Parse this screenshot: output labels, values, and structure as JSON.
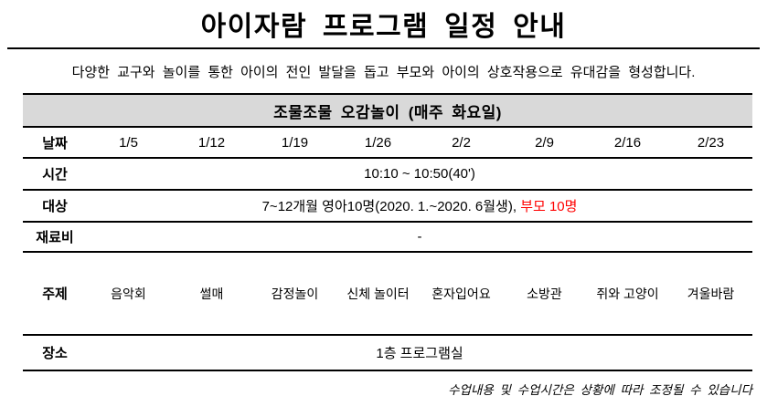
{
  "page": {
    "title": "아이자람  프로그램  일정  안내",
    "subtitle": "다양한 교구와 놀이를 통한 아이의 전인 발달을 돕고 부모와 아이의 상호작용으로 유대감을 형성합니다.",
    "footnote": "수업내용 및 수업시간은 상황에 따라 조정될 수 있습니다"
  },
  "table": {
    "header": "조물조물 오감놀이 (매주 화요일)",
    "rows": {
      "date": {
        "label": "날짜",
        "values": [
          "1/5",
          "1/12",
          "1/19",
          "1/26",
          "2/2",
          "2/9",
          "2/16",
          "2/23"
        ]
      },
      "time": {
        "label": "시간",
        "value": "10:10 ~ 10:50(40')"
      },
      "target": {
        "label": "대상",
        "value_black": "7~12개월 영아10명(2020. 1.~2020. 6월생), ",
        "value_red": "부모 10명"
      },
      "fee": {
        "label": "재료비",
        "value": "-"
      },
      "topic": {
        "label": "주제",
        "values": [
          "음악회",
          "썰매",
          "감정놀이",
          "신체 놀이터",
          "혼자입어요",
          "소방관",
          "쥐와 고양이",
          "겨울바람"
        ]
      },
      "place": {
        "label": "장소",
        "value": "1층 프로그램실"
      }
    }
  },
  "colors": {
    "header_bg": "#d9d9d9",
    "accent_red": "#ff0000",
    "line": "#000000"
  }
}
